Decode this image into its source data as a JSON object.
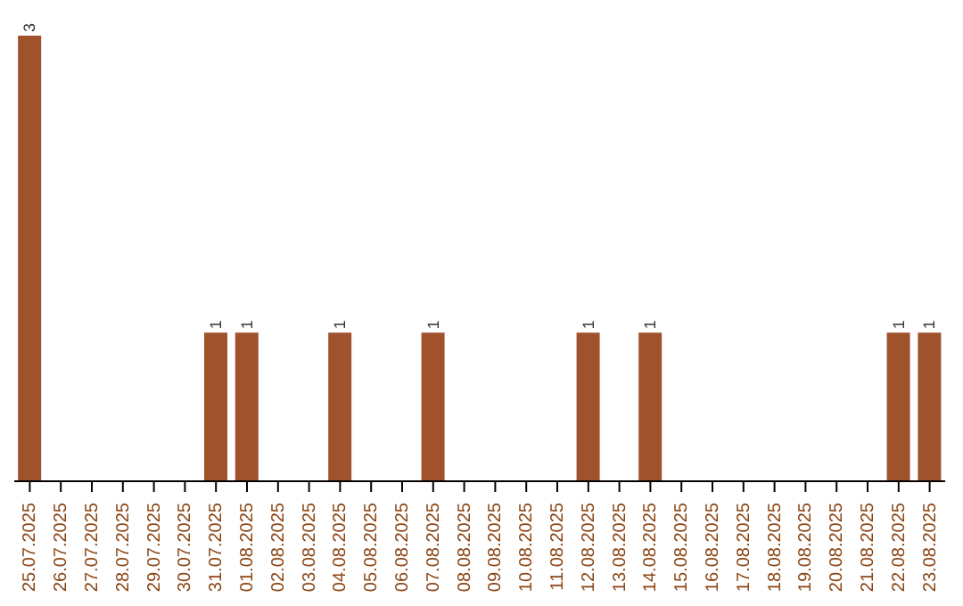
{
  "chart_data": {
    "type": "bar",
    "categories": [
      "25.07.2025",
      "26.07.2025",
      "27.07.2025",
      "28.07.2025",
      "29.07.2025",
      "30.07.2025",
      "31.07.2025",
      "01.08.2025",
      "02.08.2025",
      "03.08.2025",
      "04.08.2025",
      "05.08.2025",
      "06.08.2025",
      "07.08.2025",
      "08.08.2025",
      "09.08.2025",
      "10.08.2025",
      "11.08.2025",
      "12.08.2025",
      "13.08.2025",
      "14.08.2025",
      "15.08.2025",
      "16.08.2025",
      "17.08.2025",
      "18.08.2025",
      "19.08.2025",
      "20.08.2025",
      "21.08.2025",
      "22.08.2025",
      "23.08.2025"
    ],
    "values": [
      3,
      0,
      0,
      0,
      0,
      0,
      1,
      1,
      0,
      0,
      1,
      0,
      0,
      1,
      0,
      0,
      0,
      0,
      1,
      0,
      1,
      0,
      0,
      0,
      0,
      0,
      0,
      0,
      1,
      1
    ],
    "value_labels": [
      "3",
      null,
      null,
      null,
      null,
      null,
      "1",
      "1",
      null,
      null,
      "1",
      null,
      null,
      "1",
      null,
      null,
      null,
      null,
      "1",
      null,
      "1",
      null,
      null,
      null,
      null,
      null,
      null,
      null,
      "1",
      "1"
    ],
    "color": "#a0522d",
    "tick_labels": "x",
    "grid": false,
    "legend": false
  }
}
